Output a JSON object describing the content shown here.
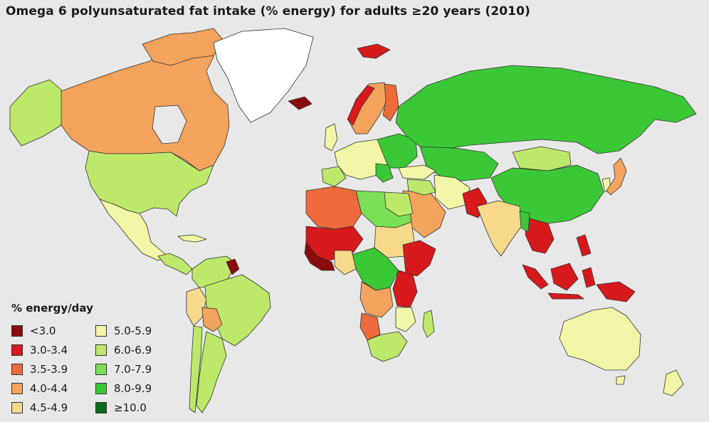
{
  "title": "Omega 6 polyunsaturated fat intake (% energy) for adults ≥20 years (2010)",
  "legend": {
    "title": "% energy/day",
    "items": [
      {
        "label": "<3.0",
        "color": "#8b0a0a"
      },
      {
        "label": "3.0-3.4",
        "color": "#d7191c"
      },
      {
        "label": "3.5-3.9",
        "color": "#ee6a3a"
      },
      {
        "label": "4.0-4.4",
        "color": "#f4a35c"
      },
      {
        "label": "4.5-4.9",
        "color": "#f7d98b"
      },
      {
        "label": "5.0-5.9",
        "color": "#f3f6a6"
      },
      {
        "label": "6.0-6.9",
        "color": "#bde96b"
      },
      {
        "label": "7.0-7.9",
        "color": "#79df55"
      },
      {
        "label": "8.0-9.9",
        "color": "#3bc836"
      },
      {
        "label": "≥10.0",
        "color": "#0a6b1a"
      }
    ]
  },
  "colors": {
    "ocean": "#e8e8e8",
    "no_data": "#ffffff",
    "border": "#333333"
  }
}
